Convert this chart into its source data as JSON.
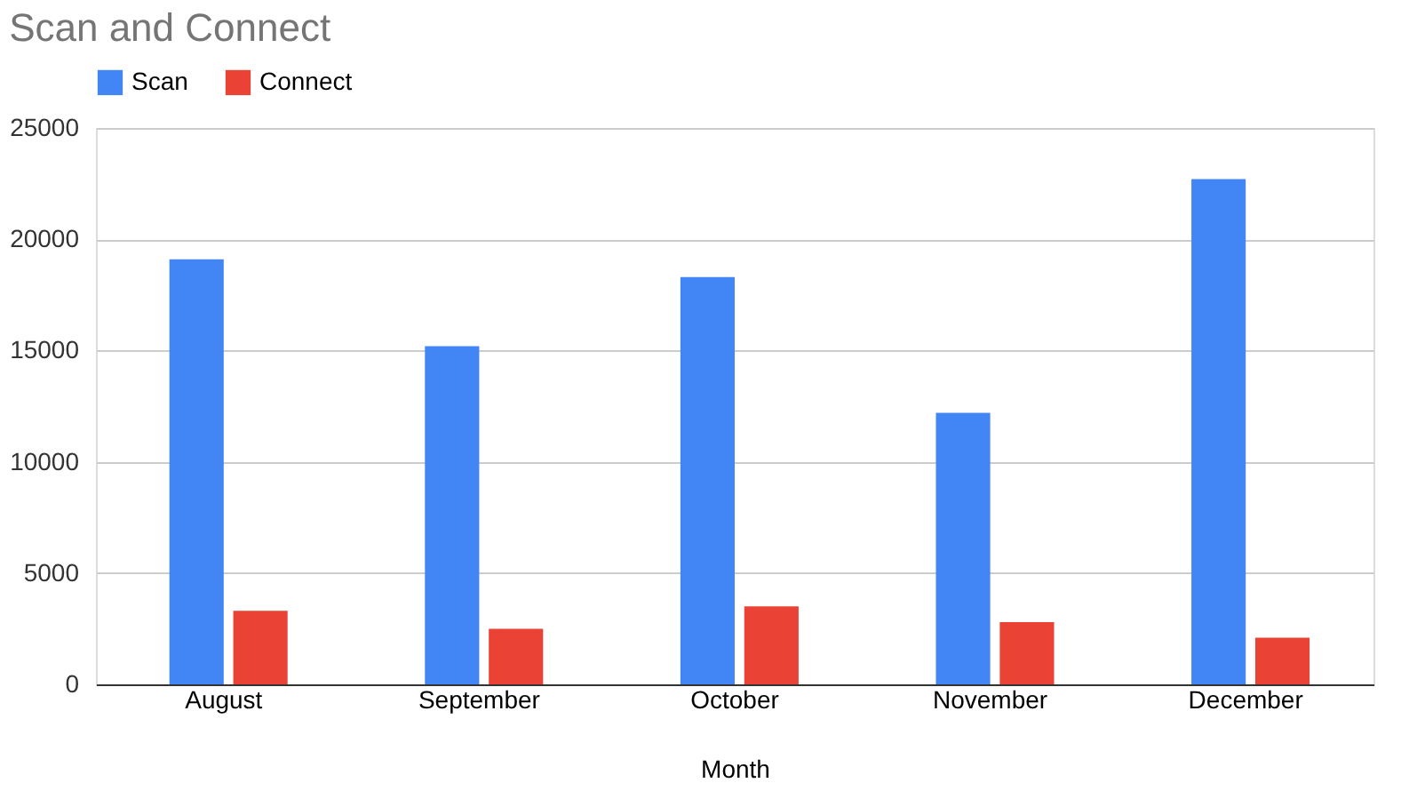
{
  "chart_data": {
    "type": "bar",
    "title": "Scan and Connect",
    "xlabel": "Month",
    "categories": [
      "August",
      "September",
      "October",
      "November",
      "December"
    ],
    "series": [
      {
        "name": "Scan",
        "color": "#4285f4",
        "values": [
          19100,
          15200,
          18300,
          12200,
          22700
        ]
      },
      {
        "name": "Connect",
        "color": "#ea4335",
        "values": [
          3300,
          2500,
          3500,
          2800,
          2100
        ]
      }
    ],
    "ylim": [
      0,
      25000
    ],
    "yticks": [
      0,
      5000,
      10000,
      15000,
      20000,
      25000
    ],
    "grid": "y",
    "legend": "top"
  }
}
